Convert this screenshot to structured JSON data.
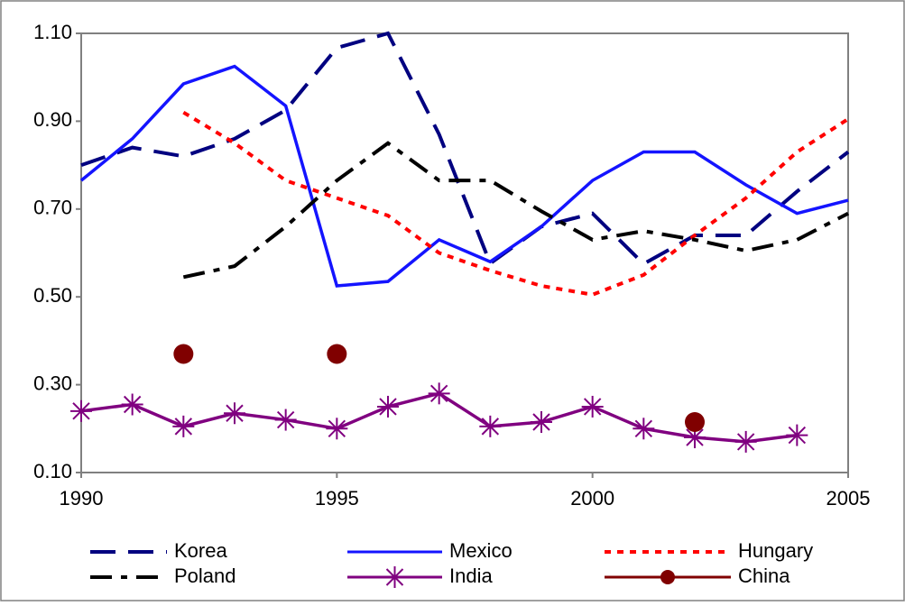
{
  "chart_data": {
    "type": "line",
    "x": [
      1990,
      1991,
      1992,
      1993,
      1994,
      1995,
      1996,
      1997,
      1998,
      1999,
      2000,
      2001,
      2002,
      2003,
      2004,
      2005
    ],
    "xlim": [
      1990,
      2005
    ],
    "xticks": [
      1990,
      1995,
      2000,
      2005
    ],
    "ylim": [
      0.1,
      1.1
    ],
    "yticks": [
      {
        "value": 0.1,
        "label": "0.10"
      },
      {
        "value": 0.3,
        "label": "0.30"
      },
      {
        "value": 0.5,
        "label": "0.50"
      },
      {
        "value": 0.7,
        "label": "0.70"
      },
      {
        "value": 0.9,
        "label": "0.90"
      },
      {
        "value": 1.1,
        "label": "1.10"
      }
    ],
    "grid": false,
    "legend": "bottom",
    "series": [
      {
        "name": "Korea",
        "color": "#000080",
        "dash": "long-dash",
        "values": [
          0.8,
          0.84,
          0.82,
          0.86,
          0.925,
          1.067,
          1.1,
          0.87,
          0.576,
          0.66,
          0.69,
          0.575,
          0.64,
          0.64,
          0.74,
          0.83
        ]
      },
      {
        "name": "Mexico",
        "color": "#1414ff",
        "dash": "solid",
        "values": [
          0.765,
          0.86,
          0.985,
          1.025,
          0.935,
          0.525,
          0.535,
          0.63,
          0.58,
          0.66,
          0.765,
          0.83,
          0.83,
          0.755,
          0.69,
          0.72
        ]
      },
      {
        "name": "Hungary",
        "color": "#ff0000",
        "dash": "dot",
        "values": [
          null,
          null,
          0.92,
          0.85,
          0.765,
          0.725,
          0.685,
          0.6,
          0.56,
          0.525,
          0.505,
          0.55,
          0.64,
          0.725,
          0.83,
          0.905
        ]
      },
      {
        "name": "Poland",
        "color": "#000000",
        "dash": "dash-dot",
        "values": [
          null,
          null,
          0.545,
          0.57,
          0.66,
          0.765,
          0.85,
          0.765,
          0.765,
          0.695,
          0.63,
          0.65,
          0.63,
          0.605,
          0.63,
          0.69
        ]
      },
      {
        "name": "India",
        "color": "#800080",
        "dash": "solid",
        "marker": "star",
        "values": [
          0.24,
          0.255,
          0.205,
          0.235,
          0.22,
          0.2,
          0.25,
          0.28,
          0.205,
          0.215,
          0.25,
          0.2,
          0.18,
          0.17,
          0.185,
          null
        ]
      },
      {
        "name": "China",
        "color": "#800000",
        "dash": "solid",
        "marker": "circle",
        "values": [
          null,
          null,
          0.37,
          null,
          null,
          0.37,
          null,
          null,
          null,
          null,
          null,
          null,
          0.215,
          null,
          null,
          null
        ]
      }
    ]
  }
}
